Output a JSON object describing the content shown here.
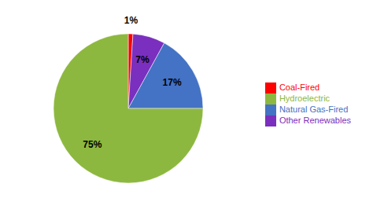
{
  "chart_data": {
    "type": "pie",
    "categories": [
      "Coal-Fired",
      "Other Renewables",
      "Natural Gas-Fired",
      "Hydroelectric"
    ],
    "values": [
      1,
      7,
      17,
      75
    ],
    "value_labels": [
      "1%",
      "7%",
      "17%",
      "75%"
    ],
    "colors": [
      "#ff0000",
      "#7b2fbe",
      "#4472c4",
      "#8db83f"
    ],
    "data_labels": true,
    "legend": "right"
  }
}
